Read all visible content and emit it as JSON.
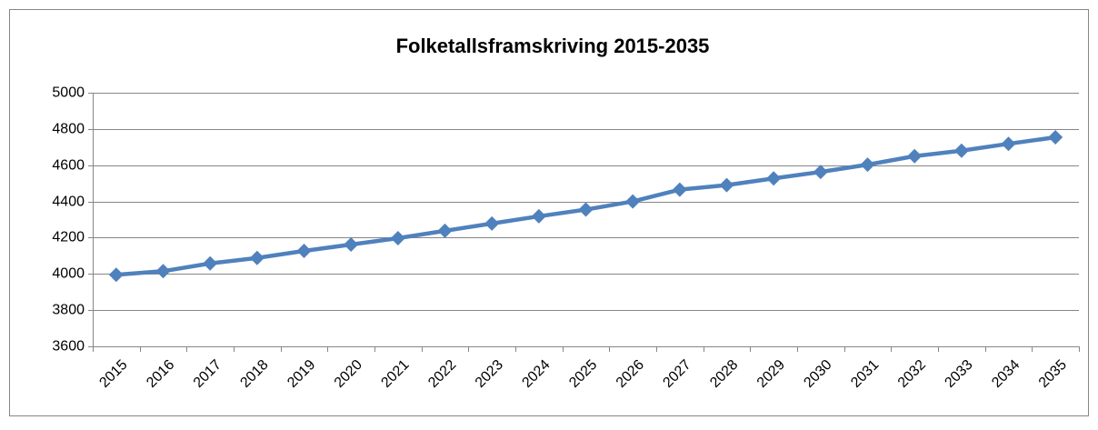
{
  "chart_data": {
    "type": "line",
    "title": "Folketallsframskriving 2015-2035",
    "categories": [
      "2015",
      "2016",
      "2017",
      "2018",
      "2019",
      "2020",
      "2021",
      "2022",
      "2023",
      "2024",
      "2025",
      "2026",
      "2027",
      "2028",
      "2029",
      "2030",
      "2031",
      "2032",
      "2033",
      "2034",
      "2035"
    ],
    "values": [
      3995,
      4015,
      4058,
      4088,
      4127,
      4162,
      4197,
      4238,
      4278,
      4318,
      4355,
      4400,
      4465,
      4490,
      4527,
      4563,
      4603,
      4650,
      4680,
      4718,
      4754
    ],
    "color": "#4f81bd",
    "ylim": [
      3600,
      5000
    ],
    "yticks": [
      3600,
      3800,
      4000,
      4200,
      4400,
      4600,
      4800,
      5000
    ],
    "grid": true
  }
}
